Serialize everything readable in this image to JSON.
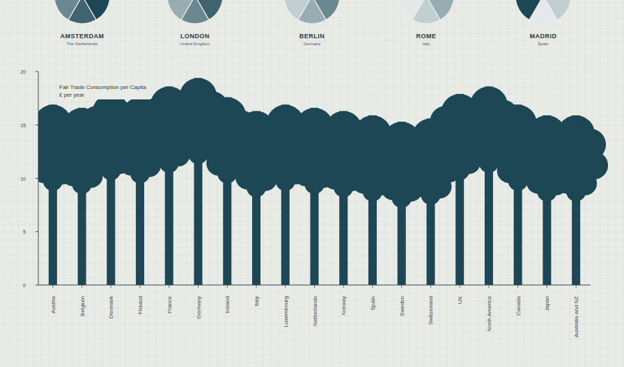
{
  "chart_data": {
    "type": "bar",
    "title": "Fair Trade Consumption per Capita",
    "subtitle": "£ per year",
    "categories": [
      "Austria",
      "Belgium",
      "Denmark",
      "Finland",
      "France",
      "Germany",
      "Ireland",
      "Italy",
      "Luxembourg",
      "Netherlands",
      "Norway",
      "Spain",
      "Sweden",
      "Switzerland",
      "UK",
      "North America",
      "Canada",
      "Japan",
      "Australia and NZ"
    ],
    "values": [
      16.9,
      16.6,
      17.9,
      17.6,
      18.6,
      19.4,
      17.6,
      16.3,
      16.9,
      16.6,
      16.3,
      15.9,
      15.3,
      15.6,
      17.9,
      18.6,
      16.9,
      15.9,
      15.9
    ],
    "color": "#1d4755",
    "ylim": [
      0,
      20
    ],
    "yticks": [
      0,
      5,
      10,
      15,
      20
    ],
    "grid": false
  },
  "cities": [
    {
      "name": "AMSTERDAM",
      "country": "The Netherlands"
    },
    {
      "name": "LONDON",
      "country": "United Kingdom"
    },
    {
      "name": "BERLIN",
      "country": "Germany"
    },
    {
      "name": "ROME",
      "country": "Italy"
    },
    {
      "name": "MADRID",
      "country": "Spain"
    }
  ]
}
